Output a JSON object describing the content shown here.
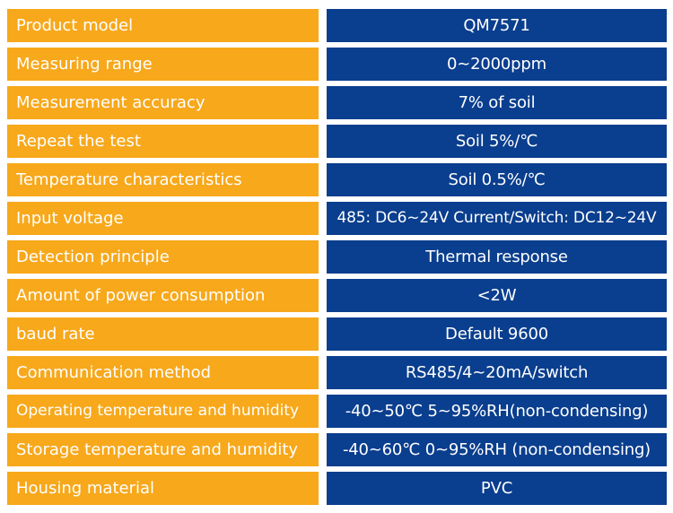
{
  "colors": {
    "label_bg": "#f7a81b",
    "value_bg": "#0a3e8e",
    "text": "#ffffff"
  },
  "specs": [
    {
      "label": "Product model",
      "value": "QM7571"
    },
    {
      "label": "Measuring range",
      "value": "0~2000ppm"
    },
    {
      "label": "Measurement accuracy",
      "value": "7% of soil"
    },
    {
      "label": "Repeat the test",
      "value": "Soil 5%/℃"
    },
    {
      "label": "Temperature characteristics",
      "value": "Soil 0.5%/℃"
    },
    {
      "label": "Input voltage",
      "value": "485: DC6~24V Current/Switch: DC12~24V"
    },
    {
      "label": "Detection principle",
      "value": "Thermal response"
    },
    {
      "label": "Amount of power consumption",
      "value": "<2W"
    },
    {
      "label": "baud rate",
      "value": "Default 9600"
    },
    {
      "label": "Communication method",
      "value": "RS485/4~20mA/switch"
    },
    {
      "label": "Operating temperature and humidity",
      "value": "-40~50℃ 5~95%RH(non-condensing)"
    },
    {
      "label": "Storage temperature and humidity",
      "value": "-40~60℃ 0~95%RH (non-condensing)"
    },
    {
      "label": "Housing material",
      "value": "PVC"
    }
  ]
}
